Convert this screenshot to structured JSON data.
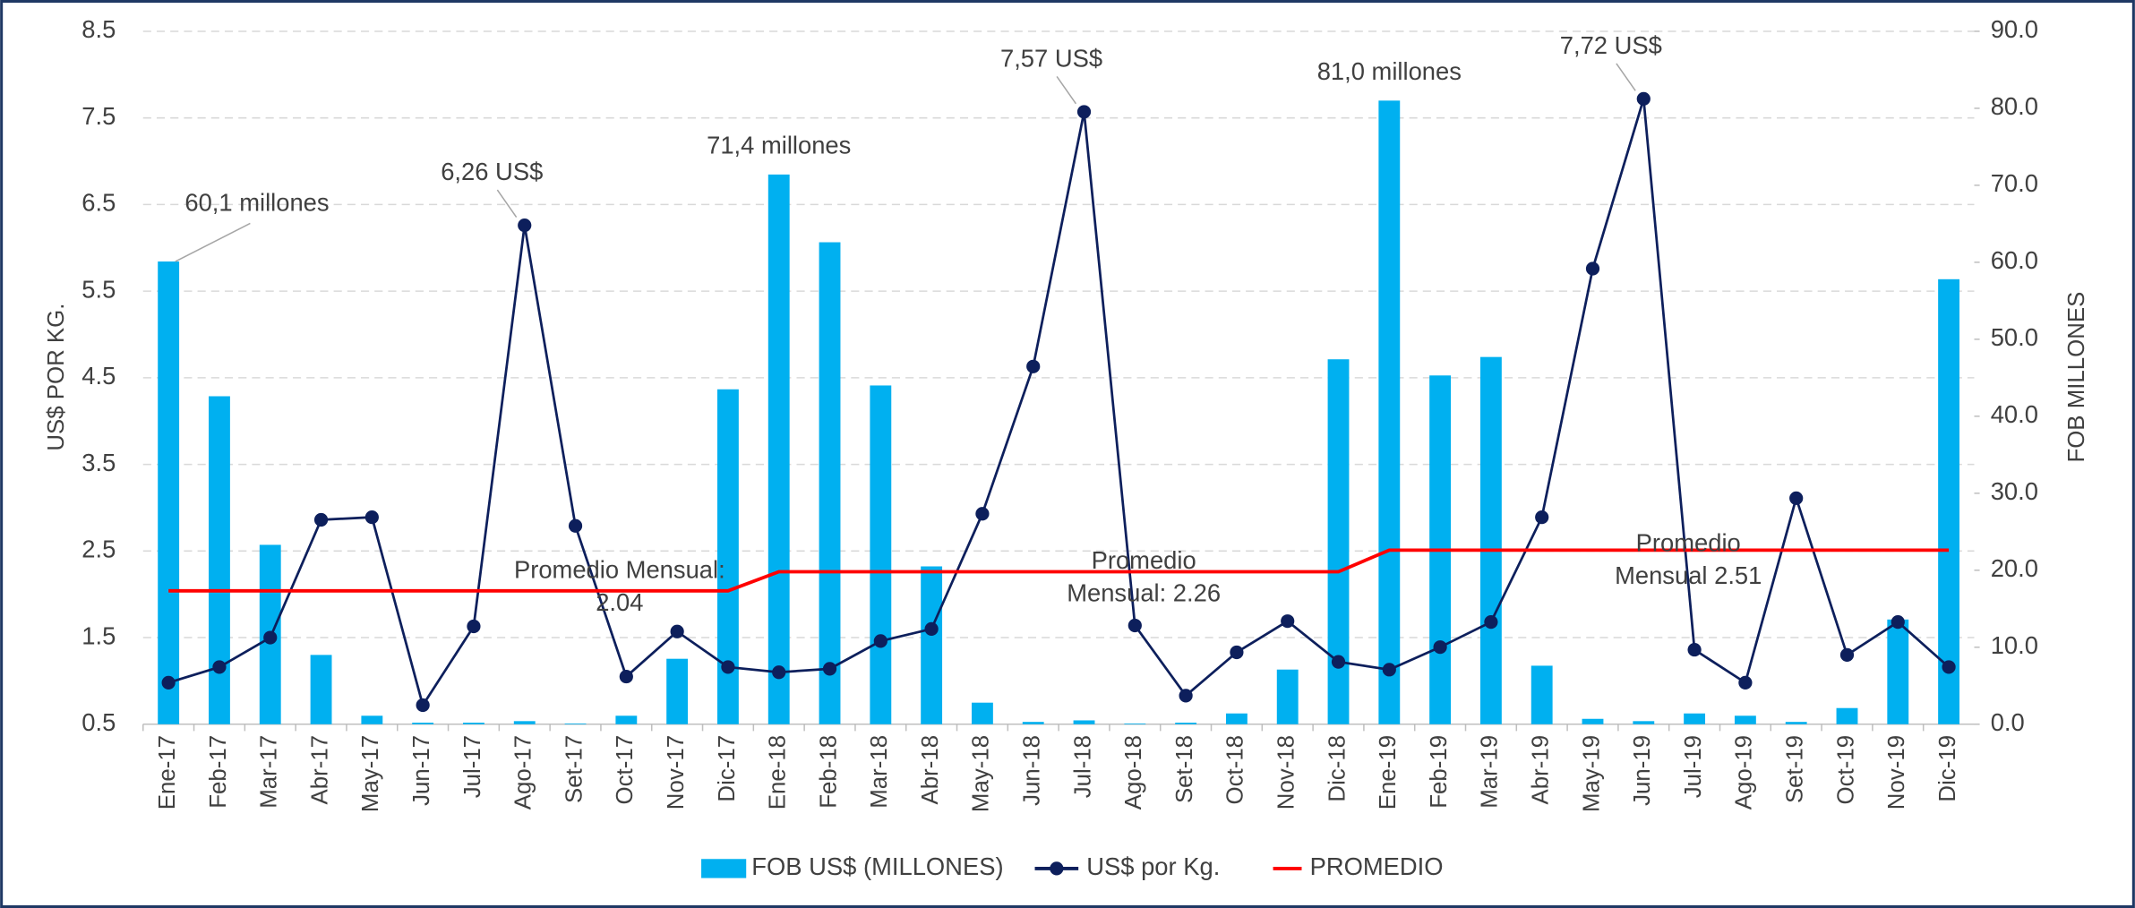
{
  "chart_data": {
    "type": "bar-line",
    "categories": [
      "Ene-17",
      "Feb-17",
      "Mar-17",
      "Abr-17",
      "May-17",
      "Jun-17",
      "Jul-17",
      "Ago-17",
      "Set-17",
      "Oct-17",
      "Nov-17",
      "Dic-17",
      "Ene-18",
      "Feb-18",
      "Mar-18",
      "Abr-18",
      "May-18",
      "Jun-18",
      "Jul-18",
      "Ago-18",
      "Set-18",
      "Oct-18",
      "Nov-18",
      "Dic-18",
      "Ene-19",
      "Feb-19",
      "Mar-19",
      "Abr-19",
      "May-19",
      "Jun-19",
      "Jul-19",
      "Ago-19",
      "Set-19",
      "Oct-19",
      "Nov-19",
      "Dic-19"
    ],
    "ylabel": "US$ POR KG.",
    "y2label": "FOB MILLONES",
    "ylim": [
      0.5,
      8.5
    ],
    "yticks": [
      0.5,
      1.5,
      2.5,
      3.5,
      4.5,
      5.5,
      6.5,
      7.5,
      8.5
    ],
    "y2lim": [
      0,
      90
    ],
    "y2ticks": [
      {
        "value": 0,
        "label": "0.0"
      },
      {
        "value": 10,
        "label": "10.0"
      },
      {
        "value": 20,
        "label": "20.0"
      },
      {
        "value": 30,
        "label": "30.0"
      },
      {
        "value": 40,
        "label": "40.0"
      },
      {
        "value": 50,
        "label": "50.0"
      },
      {
        "value": 60,
        "label": "60.0"
      },
      {
        "value": 70,
        "label": "70.0"
      },
      {
        "value": 80,
        "label": "80.0"
      },
      {
        "value": 90,
        "label": "90.0"
      }
    ],
    "grid": true,
    "legend": "bottom",
    "series": [
      {
        "name": "FOB US$ (MILLONES)",
        "type": "bar",
        "axis": "y2",
        "color": "#00b0f0",
        "values": [
          60.1,
          42.6,
          23.3,
          9.0,
          1.1,
          0.2,
          0.2,
          0.4,
          0.1,
          1.1,
          8.5,
          43.5,
          71.4,
          62.6,
          44.0,
          20.5,
          2.8,
          0.3,
          0.5,
          0.1,
          0.2,
          1.4,
          7.1,
          47.4,
          81.0,
          45.3,
          47.7,
          7.6,
          0.7,
          0.4,
          1.4,
          1.1,
          0.3,
          2.1,
          13.6,
          57.8
        ],
        "value_labels": [
          "60,1 millones",
          null,
          null,
          null,
          null,
          null,
          null,
          null,
          null,
          null,
          null,
          null,
          "71,4 millones",
          null,
          null,
          null,
          null,
          null,
          null,
          null,
          null,
          null,
          null,
          null,
          "81,0 millones",
          null,
          null,
          null,
          null,
          null,
          null,
          null,
          null,
          null,
          null,
          null
        ]
      },
      {
        "name": "US$ por Kg.",
        "type": "line",
        "color": "#0d1f5c",
        "values": [
          0.98,
          1.16,
          1.5,
          2.86,
          2.89,
          0.72,
          1.63,
          6.26,
          2.79,
          1.05,
          1.57,
          1.16,
          1.1,
          1.14,
          1.46,
          1.6,
          2.93,
          4.63,
          7.57,
          1.64,
          0.83,
          1.33,
          1.69,
          1.22,
          1.13,
          1.39,
          1.68,
          2.89,
          5.76,
          7.72,
          1.36,
          0.98,
          3.11,
          1.3,
          1.68,
          1.16
        ],
        "value_labels": [
          null,
          null,
          null,
          null,
          null,
          null,
          null,
          "6,26 US$",
          null,
          null,
          null,
          null,
          null,
          null,
          null,
          null,
          null,
          null,
          "7,57 US$",
          null,
          null,
          null,
          null,
          null,
          null,
          null,
          null,
          null,
          null,
          "7,72 US$",
          null,
          null,
          null,
          null,
          null,
          null
        ]
      },
      {
        "name": "PROMEDIO",
        "type": "line",
        "color": "#ff0000",
        "values": [
          2.04,
          2.04,
          2.04,
          2.04,
          2.04,
          2.04,
          2.04,
          2.04,
          2.04,
          2.04,
          2.04,
          2.04,
          2.26,
          2.26,
          2.26,
          2.26,
          2.26,
          2.26,
          2.26,
          2.26,
          2.26,
          2.26,
          2.26,
          2.26,
          2.51,
          2.51,
          2.51,
          2.51,
          2.51,
          2.51,
          2.51,
          2.51,
          2.51,
          2.51,
          2.51,
          2.51
        ]
      }
    ],
    "annotations": [
      [
        "Promedio Mensual:",
        "2.04"
      ],
      [
        "Promedio",
        "Mensual: 2.26"
      ],
      [
        "Promedio",
        "Mensual 2.51"
      ]
    ]
  }
}
